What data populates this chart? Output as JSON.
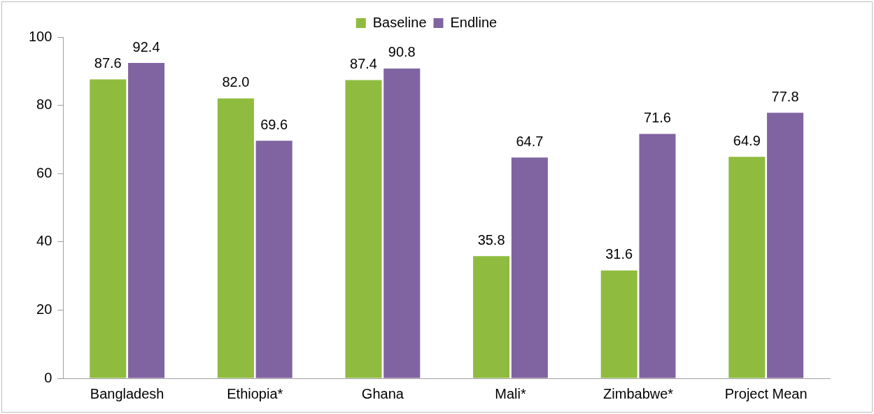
{
  "chart_data": {
    "type": "bar",
    "categories": [
      "Bangladesh",
      "Ethiopia*",
      "Ghana",
      "Mali*",
      "Zimbabwe*",
      "Project Mean"
    ],
    "series": [
      {
        "name": "Baseline",
        "color": "#8fbc3f",
        "values": [
          87.6,
          82.0,
          87.4,
          35.8,
          31.6,
          64.9
        ],
        "value_labels": [
          "87.6",
          "82.0",
          "87.4",
          "35.8",
          "31.6",
          "64.9"
        ]
      },
      {
        "name": "Endline",
        "color": "#8064a2",
        "values": [
          92.4,
          69.6,
          90.8,
          64.7,
          71.6,
          77.8
        ],
        "value_labels": [
          "92.4",
          "69.6",
          "90.8",
          "64.7",
          "71.6",
          "77.8"
        ]
      }
    ],
    "ylim": [
      0,
      100
    ],
    "yticks": [
      0,
      20,
      40,
      60,
      80,
      100
    ],
    "grid": false,
    "legend": "top"
  }
}
